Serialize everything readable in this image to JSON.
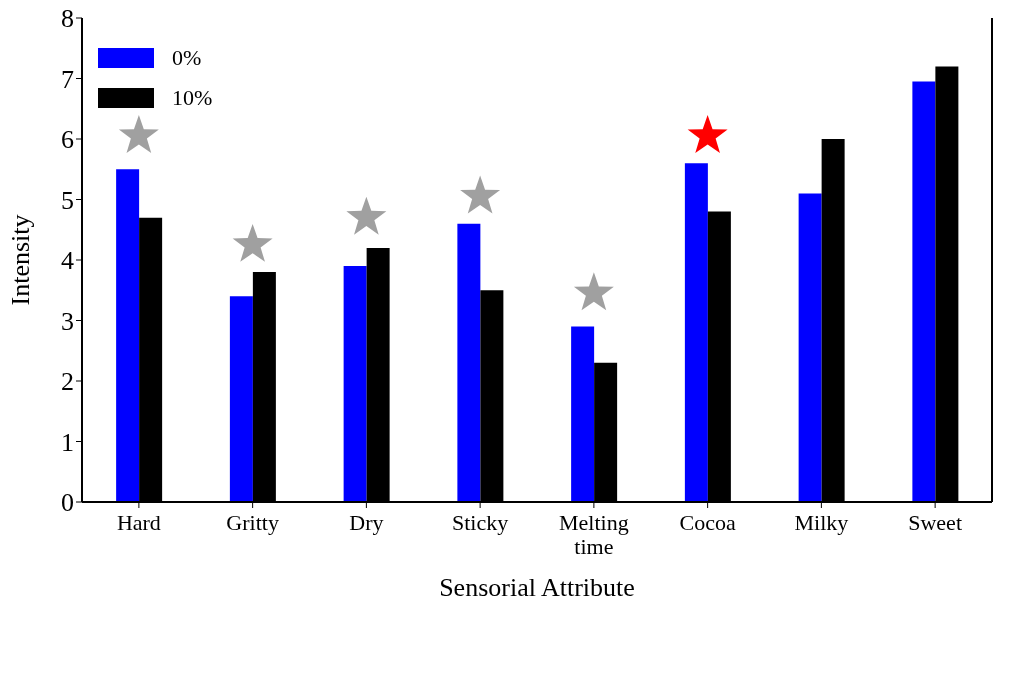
{
  "chart_data": {
    "type": "bar",
    "xlabel": "Sensorial Attribute",
    "ylabel": "Intensity",
    "categories": [
      "Hard",
      "Gritty",
      "Dry",
      "Sticky",
      "Melting time",
      "Cocoa",
      "Milky",
      "Sweet"
    ],
    "series": [
      {
        "name": "0%",
        "color": "#0000ff",
        "values": [
          5.5,
          3.4,
          3.9,
          4.6,
          2.9,
          5.6,
          5.1,
          6.95
        ]
      },
      {
        "name": "10%",
        "color": "#000000",
        "values": [
          4.7,
          3.8,
          4.2,
          3.5,
          2.3,
          4.8,
          6.0,
          7.2
        ]
      },
      {
        "type": "scatter",
        "marker": "star",
        "x": [
          "Hard",
          "Gritty",
          "Dry",
          "Sticky",
          "Melting time",
          "Cocoa"
        ],
        "values": [
          6.05,
          4.25,
          4.7,
          5.05,
          3.45,
          6.05
        ],
        "colors": [
          "#a0a0a0",
          "#a0a0a0",
          "#a0a0a0",
          "#a0a0a0",
          "#a0a0a0",
          "#ff0000"
        ]
      }
    ],
    "ylim": [
      0,
      8
    ],
    "yticks": [
      0,
      1,
      2,
      3,
      4,
      5,
      6,
      7,
      8
    ],
    "legend": "top left"
  }
}
